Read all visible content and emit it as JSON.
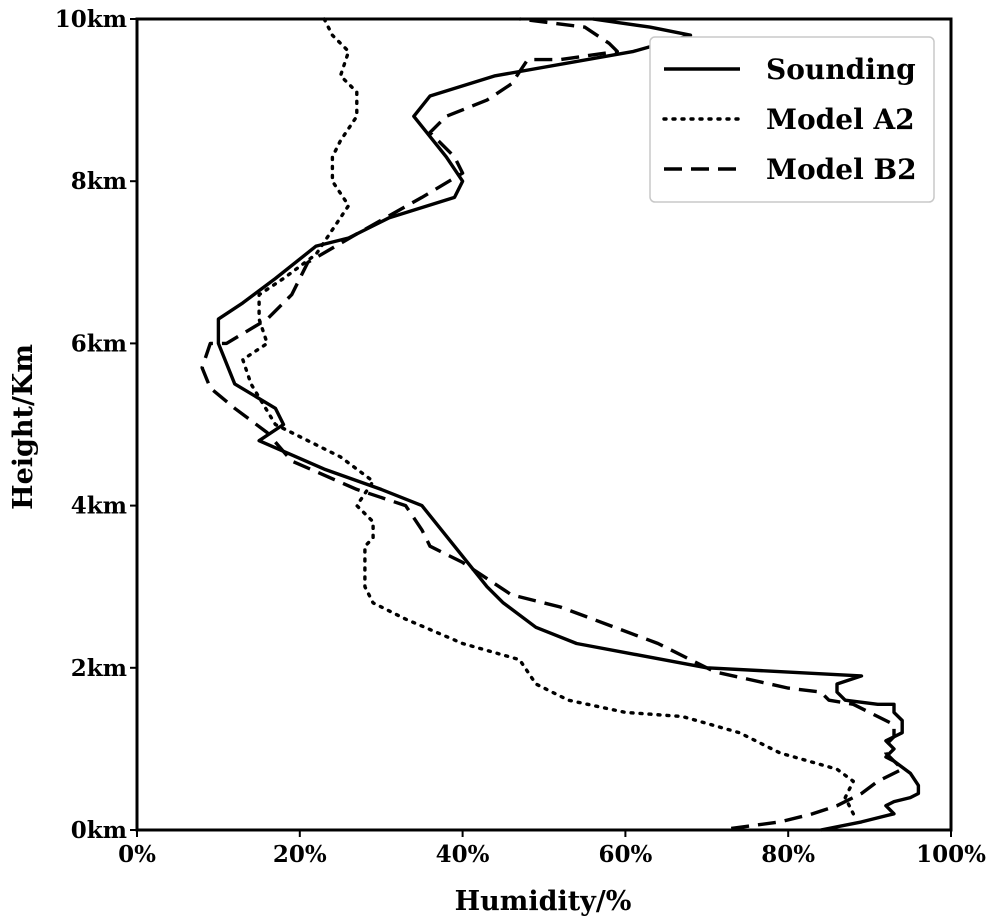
{
  "chart_data": {
    "type": "line",
    "xlabel": "Humidity/%",
    "ylabel": "Height/Km",
    "xlim": [
      0,
      100
    ],
    "ylim": [
      0,
      10
    ],
    "x_ticks": [
      "0%",
      "20%",
      "40%",
      "60%",
      "80%",
      "100%"
    ],
    "y_ticks": [
      "0km",
      "2km",
      "4km",
      "6km",
      "8km",
      "10km"
    ],
    "grid": false,
    "legend_position": "top-right",
    "series": [
      {
        "name": "Sounding",
        "style": "solid",
        "color": "#000000",
        "points": [
          [
            84,
            0
          ],
          [
            89,
            0.1
          ],
          [
            93,
            0.2
          ],
          [
            92,
            0.3
          ],
          [
            93,
            0.35
          ],
          [
            95,
            0.4
          ],
          [
            96,
            0.45
          ],
          [
            96,
            0.55
          ],
          [
            95,
            0.7
          ],
          [
            93,
            0.85
          ],
          [
            92,
            0.9
          ],
          [
            93,
            1.0
          ],
          [
            92,
            1.1
          ],
          [
            94,
            1.2
          ],
          [
            94,
            1.35
          ],
          [
            93,
            1.45
          ],
          [
            93,
            1.55
          ],
          [
            91,
            1.55
          ],
          [
            87,
            1.6
          ],
          [
            86,
            1.7
          ],
          [
            86,
            1.8
          ],
          [
            89,
            1.9
          ],
          [
            70,
            2.0
          ],
          [
            54,
            2.3
          ],
          [
            49,
            2.5
          ],
          [
            45,
            2.8
          ],
          [
            43,
            3.0
          ],
          [
            39,
            3.5
          ],
          [
            35,
            4.0
          ],
          [
            30,
            4.2
          ],
          [
            23,
            4.45
          ],
          [
            15,
            4.8
          ],
          [
            18,
            5.0
          ],
          [
            17,
            5.2
          ],
          [
            12,
            5.5
          ],
          [
            10,
            6.0
          ],
          [
            10,
            6.3
          ],
          [
            13,
            6.5
          ],
          [
            17,
            6.8
          ],
          [
            22,
            7.2
          ],
          [
            26,
            7.3
          ],
          [
            31,
            7.55
          ],
          [
            39,
            7.8
          ],
          [
            40,
            8.0
          ],
          [
            38,
            8.3
          ],
          [
            34,
            8.8
          ],
          [
            36,
            9.05
          ],
          [
            44,
            9.3
          ],
          [
            61,
            9.6
          ],
          [
            68,
            9.8
          ],
          [
            63,
            9.9
          ],
          [
            56,
            10.0
          ]
        ]
      },
      {
        "name": "Model A2",
        "style": "dotted",
        "color": "#000000",
        "points": [
          [
            88,
            0.2
          ],
          [
            87,
            0.4
          ],
          [
            88,
            0.6
          ],
          [
            86,
            0.75
          ],
          [
            79,
            0.95
          ],
          [
            74,
            1.2
          ],
          [
            67,
            1.4
          ],
          [
            60,
            1.45
          ],
          [
            53,
            1.6
          ],
          [
            49,
            1.8
          ],
          [
            47,
            2.1
          ],
          [
            40,
            2.3
          ],
          [
            33,
            2.6
          ],
          [
            29,
            2.8
          ],
          [
            28,
            3.0
          ],
          [
            28,
            3.5
          ],
          [
            29,
            3.6
          ],
          [
            29,
            3.8
          ],
          [
            27,
            4.0
          ],
          [
            29,
            4.3
          ],
          [
            25,
            4.6
          ],
          [
            17,
            5.0
          ],
          [
            14,
            5.5
          ],
          [
            13,
            5.8
          ],
          [
            16,
            6.0
          ],
          [
            15,
            6.3
          ],
          [
            15,
            6.6
          ],
          [
            18,
            6.8
          ],
          [
            22,
            7.1
          ],
          [
            26,
            7.7
          ],
          [
            24,
            8.0
          ],
          [
            24,
            8.3
          ],
          [
            25,
            8.5
          ],
          [
            27,
            8.8
          ],
          [
            27,
            9.1
          ],
          [
            25,
            9.3
          ],
          [
            26,
            9.6
          ],
          [
            24,
            9.8
          ],
          [
            23,
            10.0
          ]
        ]
      },
      {
        "name": "Model B2",
        "style": "dashed",
        "color": "#000000",
        "points": [
          [
            73,
            0.02
          ],
          [
            79,
            0.1
          ],
          [
            83,
            0.2
          ],
          [
            86,
            0.3
          ],
          [
            89,
            0.45
          ],
          [
            91,
            0.6
          ],
          [
            94,
            0.75
          ],
          [
            93,
            0.85
          ],
          [
            92,
            0.95
          ],
          [
            92,
            1.05
          ],
          [
            93,
            1.15
          ],
          [
            93,
            1.3
          ],
          [
            91,
            1.4
          ],
          [
            88,
            1.55
          ],
          [
            85,
            1.6
          ],
          [
            84,
            1.7
          ],
          [
            80,
            1.75
          ],
          [
            71,
            1.95
          ],
          [
            64,
            2.3
          ],
          [
            56,
            2.6
          ],
          [
            52,
            2.75
          ],
          [
            46,
            2.9
          ],
          [
            40,
            3.3
          ],
          [
            36,
            3.5
          ],
          [
            35,
            3.7
          ],
          [
            33,
            4.0
          ],
          [
            27,
            4.2
          ],
          [
            19,
            4.55
          ],
          [
            16,
            4.9
          ],
          [
            12,
            5.2
          ],
          [
            9,
            5.45
          ],
          [
            8,
            5.7
          ],
          [
            9,
            6.0
          ],
          [
            11,
            6.0
          ],
          [
            16,
            6.3
          ],
          [
            19,
            6.6
          ],
          [
            21,
            7.0
          ],
          [
            27,
            7.35
          ],
          [
            35,
            7.8
          ],
          [
            40,
            8.1
          ],
          [
            39,
            8.3
          ],
          [
            36,
            8.6
          ],
          [
            38,
            8.8
          ],
          [
            43,
            9.0
          ],
          [
            46,
            9.2
          ],
          [
            48,
            9.5
          ],
          [
            52,
            9.5
          ],
          [
            59,
            9.6
          ],
          [
            58,
            9.7
          ],
          [
            55,
            9.9
          ],
          [
            47,
            10.0
          ]
        ]
      }
    ]
  }
}
